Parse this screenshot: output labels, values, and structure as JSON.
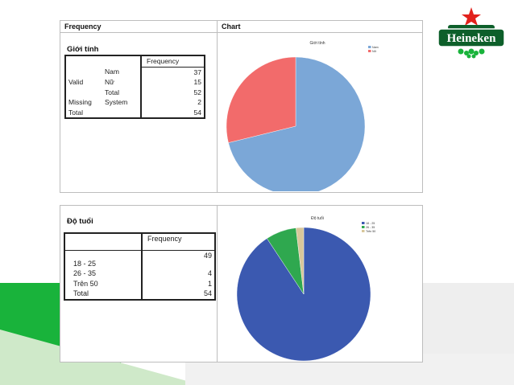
{
  "brand": {
    "name": "Heineken",
    "colors": {
      "green": "#19b33b",
      "darkgreen": "#0d5f2a",
      "red": "#e2211c"
    }
  },
  "gender_panel": {
    "header_left": "Frequency",
    "header_right": "Chart",
    "subtitle": "Giới tính",
    "table": {
      "column_header": "Frequency",
      "rows": [
        {
          "group": "",
          "label": "Nam",
          "value": "37"
        },
        {
          "group": "Valid",
          "label": "Nữ",
          "value": "15"
        },
        {
          "group": "",
          "label": "Total",
          "value": "52"
        },
        {
          "group": "Missing",
          "label": "System",
          "value": "2"
        },
        {
          "group": "Total",
          "label": "",
          "value": "54"
        }
      ]
    }
  },
  "age_panel": {
    "subtitle": "Độ tuổi",
    "table": {
      "column_header": "Frequency",
      "rows": [
        {
          "label": "18 - 25",
          "value": "49"
        },
        {
          "label": "26 - 35",
          "value": "4"
        },
        {
          "label": "Trên 50",
          "value": "1"
        },
        {
          "label": "Total",
          "value": "54"
        }
      ]
    }
  },
  "chart_data": [
    {
      "type": "pie",
      "title": "Giới tính",
      "categories": [
        "Nam",
        "Nữ"
      ],
      "values": [
        37,
        15
      ],
      "colors": [
        "#7ba7d7",
        "#f26b6b"
      ],
      "legend": "top-right"
    },
    {
      "type": "pie",
      "title": "Độ tuổi",
      "categories": [
        "18 - 25",
        "26 - 35",
        "Trên 50"
      ],
      "values": [
        49,
        4,
        1
      ],
      "colors": [
        "#3b59b0",
        "#2fa84f",
        "#d8c79a"
      ],
      "legend": "top-right"
    }
  ]
}
